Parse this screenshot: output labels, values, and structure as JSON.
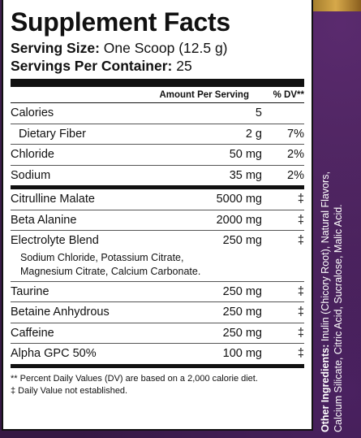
{
  "title": "Supplement Facts",
  "serving_size": {
    "label": "Serving Size:",
    "value": " One Scoop (12.5 g)"
  },
  "servings_per_container": {
    "label": "Servings Per Container:",
    "value": " 25"
  },
  "header": {
    "amount_per_serving": "Amount Per Serving",
    "dv": "% DV**"
  },
  "rows_group1": [
    {
      "name": "Calories",
      "amount": "5",
      "dv": ""
    },
    {
      "name": "Dietary Fiber",
      "amount": "2 g",
      "dv": "7%"
    },
    {
      "name": "Chloride",
      "amount": "50 mg",
      "dv": "2%"
    },
    {
      "name": "Sodium",
      "amount": "35 mg",
      "dv": "2%"
    }
  ],
  "rows_group2": [
    {
      "name": "Citrulline Malate",
      "amount": "5000 mg",
      "dv": "‡"
    },
    {
      "name": "Beta Alanine",
      "amount": "2000 mg",
      "dv": "‡"
    },
    {
      "name": "Electrolyte Blend",
      "amount": "250 mg",
      "dv": "‡"
    }
  ],
  "blend_detail": {
    "line1": "Sodium Chloride, Potassium Citrate,",
    "line2": "Magnesium Citrate, Calcium Carbonate."
  },
  "rows_group3": [
    {
      "name": "Taurine",
      "amount": "250 mg",
      "dv": "‡"
    },
    {
      "name": "Betaine Anhydrous",
      "amount": "250 mg",
      "dv": "‡"
    },
    {
      "name": "Caffeine",
      "amount": "250 mg",
      "dv": "‡"
    },
    {
      "name": "Alpha GPC 50%",
      "amount": "100 mg",
      "dv": "‡"
    }
  ],
  "footnotes": {
    "dv_note": "** Percent Daily Values (DV) are based on a 2,000 calorie diet.",
    "not_established": "‡ Daily Value not established."
  },
  "other_ingredients": {
    "label": "Other Ingredients:",
    "line1": " Inulin (Chicory Root), Natural Flavors,",
    "line2": "Calcium Silicate, Citric Acid, Sucralose, Malic Acid."
  },
  "colors": {
    "background": "#3b1d4e",
    "panel": "#ffffff",
    "text": "#111111",
    "accent": "#d6a84a"
  }
}
